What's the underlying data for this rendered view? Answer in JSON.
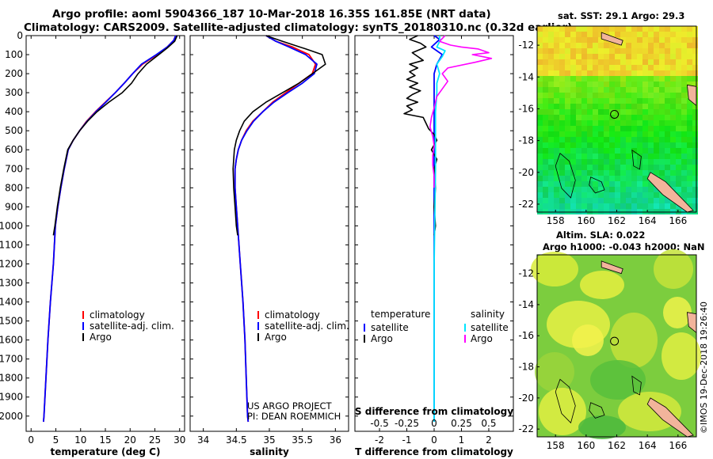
{
  "header": {
    "line1": "Argo profile: aoml 5904366_187 10-Mar-2018 16.35S 161.85E (NRT data)",
    "line2": "Climatology: CARS2009. Satellite-adjusted climatology: synTS_20180310.nc (0.32d earlier)"
  },
  "credit": "©IMOS 19-Dec-2018 19:26:40",
  "colors": {
    "clim": "#ff0000",
    "sat": "#0000ff",
    "argo": "#000000",
    "sdiff_sat": "#00e5ff",
    "sdiff_argo": "#ff00ff",
    "land": "#f2b49b"
  },
  "chart_data": [
    {
      "type": "line",
      "id": "temperature",
      "xlabel": "temperature (deg C)",
      "ylabel": "",
      "xlim": [
        -1,
        31
      ],
      "ylim": [
        2080,
        0
      ],
      "xticks": [
        0,
        5,
        10,
        15,
        20,
        25,
        30
      ],
      "yticks": [
        0,
        100,
        200,
        300,
        400,
        500,
        600,
        700,
        800,
        900,
        1000,
        1100,
        1200,
        1300,
        1400,
        1500,
        1600,
        1700,
        1800,
        1900,
        2000
      ],
      "legend": [
        "climatology",
        "satellite-adj. clim.",
        "Argo"
      ],
      "series": [
        {
          "name": "climatology",
          "color": "#ff0000",
          "points": [
            [
              29.2,
              0
            ],
            [
              28.8,
              25
            ],
            [
              27.5,
              60
            ],
            [
              25.5,
              100
            ],
            [
              22.5,
              150
            ],
            [
              20.5,
              200
            ],
            [
              18.8,
              250
            ],
            [
              17,
              300
            ],
            [
              15,
              350
            ],
            [
              13,
              400
            ],
            [
              11.2,
              450
            ],
            [
              9.8,
              500
            ],
            [
              8.5,
              550
            ],
            [
              7.5,
              600
            ],
            [
              6.7,
              700
            ],
            [
              6,
              800
            ],
            [
              5.4,
              900
            ],
            [
              4.9,
              1000
            ],
            [
              4.5,
              1200
            ],
            [
              3.9,
              1400
            ],
            [
              3.4,
              1600
            ],
            [
              3,
              1800
            ],
            [
              2.6,
              2000
            ],
            [
              2.5,
              2030
            ]
          ]
        },
        {
          "name": "satellite-adj. clim.",
          "color": "#0000ff",
          "points": [
            [
              29.2,
              0
            ],
            [
              28.8,
              25
            ],
            [
              27.5,
              60
            ],
            [
              25.3,
              100
            ],
            [
              22.3,
              150
            ],
            [
              20.5,
              200
            ],
            [
              18.8,
              250
            ],
            [
              17,
              300
            ],
            [
              15.1,
              350
            ],
            [
              13.1,
              400
            ],
            [
              11.3,
              450
            ],
            [
              9.8,
              500
            ],
            [
              8.5,
              550
            ],
            [
              7.5,
              600
            ],
            [
              6.7,
              700
            ],
            [
              6,
              800
            ],
            [
              5.4,
              900
            ],
            [
              4.9,
              1000
            ],
            [
              4.5,
              1200
            ],
            [
              3.9,
              1400
            ],
            [
              3.4,
              1600
            ],
            [
              3,
              1800
            ],
            [
              2.6,
              2000
            ],
            [
              2.5,
              2030
            ]
          ]
        },
        {
          "name": "Argo",
          "color": "#000000",
          "points": [
            [
              29.5,
              0
            ],
            [
              29,
              30
            ],
            [
              27.5,
              65
            ],
            [
              25.8,
              100
            ],
            [
              23.3,
              150
            ],
            [
              21.6,
              200
            ],
            [
              20.3,
              250
            ],
            [
              18.4,
              300
            ],
            [
              15.7,
              350
            ],
            [
              13.3,
              400
            ],
            [
              11.4,
              450
            ],
            [
              9.8,
              500
            ],
            [
              8.5,
              550
            ],
            [
              7.4,
              600
            ],
            [
              6.6,
              700
            ],
            [
              5.9,
              800
            ],
            [
              5.3,
              900
            ],
            [
              4.8,
              1000
            ],
            [
              4.5,
              1050
            ]
          ]
        }
      ]
    },
    {
      "type": "line",
      "id": "salinity",
      "xlabel": "salinity",
      "ylabel": "",
      "xlim": [
        33.8,
        36.2
      ],
      "ylim": [
        2080,
        0
      ],
      "xticks": [
        34,
        34.5,
        35,
        35.5,
        36
      ],
      "legend": [
        "climatology",
        "satellite-adj. clim.",
        "Argo"
      ],
      "annotation": [
        "US ARGO PROJECT",
        "PI: DEAN ROEMMICH"
      ],
      "series": [
        {
          "name": "climatology",
          "color": "#ff0000",
          "points": [
            [
              34.95,
              0
            ],
            [
              35.1,
              30
            ],
            [
              35.35,
              60
            ],
            [
              35.6,
              100
            ],
            [
              35.7,
              150
            ],
            [
              35.65,
              200
            ],
            [
              35.45,
              250
            ],
            [
              35.25,
              300
            ],
            [
              35.05,
              350
            ],
            [
              34.9,
              400
            ],
            [
              34.75,
              450
            ],
            [
              34.65,
              500
            ],
            [
              34.58,
              550
            ],
            [
              34.53,
              600
            ],
            [
              34.5,
              650
            ],
            [
              34.48,
              700
            ],
            [
              34.48,
              800
            ],
            [
              34.5,
              900
            ],
            [
              34.52,
              1000
            ],
            [
              34.56,
              1200
            ],
            [
              34.6,
              1400
            ],
            [
              34.63,
              1600
            ],
            [
              34.65,
              1800
            ],
            [
              34.67,
              2000
            ],
            [
              34.68,
              2030
            ]
          ]
        },
        {
          "name": "satellite-adj. clim.",
          "color": "#0000ff",
          "points": [
            [
              34.95,
              0
            ],
            [
              35.1,
              30
            ],
            [
              35.3,
              60
            ],
            [
              35.55,
              100
            ],
            [
              35.72,
              150
            ],
            [
              35.68,
              200
            ],
            [
              35.5,
              250
            ],
            [
              35.28,
              300
            ],
            [
              35.07,
              350
            ],
            [
              34.9,
              400
            ],
            [
              34.76,
              450
            ],
            [
              34.66,
              500
            ],
            [
              34.58,
              550
            ],
            [
              34.53,
              600
            ],
            [
              34.5,
              650
            ],
            [
              34.48,
              700
            ],
            [
              34.48,
              800
            ],
            [
              34.5,
              900
            ],
            [
              34.52,
              1000
            ],
            [
              34.56,
              1200
            ],
            [
              34.6,
              1400
            ],
            [
              34.63,
              1600
            ],
            [
              34.65,
              1800
            ],
            [
              34.67,
              2000
            ],
            [
              34.68,
              2030
            ]
          ]
        },
        {
          "name": "Argo",
          "color": "#000000",
          "points": [
            [
              34.95,
              0
            ],
            [
              35.2,
              30
            ],
            [
              35.55,
              70
            ],
            [
              35.8,
              100
            ],
            [
              35.85,
              150
            ],
            [
              35.65,
              200
            ],
            [
              35.45,
              250
            ],
            [
              35.2,
              300
            ],
            [
              34.95,
              350
            ],
            [
              34.75,
              400
            ],
            [
              34.62,
              450
            ],
            [
              34.55,
              500
            ],
            [
              34.5,
              550
            ],
            [
              34.47,
              600
            ],
            [
              34.46,
              650
            ],
            [
              34.45,
              700
            ],
            [
              34.46,
              800
            ],
            [
              34.48,
              900
            ],
            [
              34.5,
              1000
            ],
            [
              34.52,
              1050
            ]
          ]
        }
      ]
    },
    {
      "type": "line",
      "id": "difference",
      "xlabel": "T difference from climatology",
      "x2label": "S difference from climatology",
      "xlim": [
        -2.9,
        2.9
      ],
      "ylim": [
        2080,
        0
      ],
      "xticks": [
        -2,
        -1,
        0,
        1,
        2
      ],
      "x2ticks": [
        {
          "label": "-0.5",
          "x": -2
        },
        {
          "label": "-0.25",
          "x": -1
        },
        {
          "label": "0",
          "x": 0
        },
        {
          "label": "0.25",
          "x": 1
        },
        {
          "label": "0.5",
          "x": 2
        }
      ],
      "legend_left_title": "temperature",
      "legend_left": [
        "satellite",
        "Argo"
      ],
      "legend_right_title": "salinity",
      "legend_right": [
        "satellite",
        "Argo"
      ],
      "series": [
        {
          "name": "T satellite",
          "color": "#0000ff",
          "points": [
            [
              0,
              0
            ],
            [
              0.2,
              20
            ],
            [
              -0.1,
              60
            ],
            [
              0.3,
              100
            ],
            [
              0.1,
              150
            ],
            [
              0,
              200
            ],
            [
              0,
              300
            ],
            [
              0,
              500
            ],
            [
              0,
              2030
            ]
          ]
        },
        {
          "name": "T Argo",
          "color": "#000000",
          "points": [
            [
              -0.6,
              0
            ],
            [
              -0.9,
              20
            ],
            [
              -0.5,
              40
            ],
            [
              -0.3,
              60
            ],
            [
              -0.8,
              90
            ],
            [
              -0.6,
              110
            ],
            [
              -0.4,
              130
            ],
            [
              -0.9,
              150
            ],
            [
              -0.6,
              170
            ],
            [
              -0.9,
              190
            ],
            [
              -0.7,
              210
            ],
            [
              -1,
              230
            ],
            [
              -0.6,
              250
            ],
            [
              -0.9,
              270
            ],
            [
              -0.5,
              290
            ],
            [
              -0.8,
              310
            ],
            [
              -1,
              330
            ],
            [
              -0.6,
              350
            ],
            [
              -1,
              370
            ],
            [
              -0.8,
              390
            ],
            [
              -1.1,
              410
            ],
            [
              -0.4,
              430
            ],
            [
              -0.3,
              460
            ],
            [
              -0.2,
              490
            ],
            [
              0,
              520
            ],
            [
              0.1,
              550
            ],
            [
              -0.1,
              600
            ],
            [
              0.1,
              650
            ],
            [
              0,
              700
            ],
            [
              0.05,
              800
            ],
            [
              0,
              900
            ],
            [
              0.05,
              1000
            ],
            [
              0,
              1050
            ]
          ]
        },
        {
          "name": "S satellite",
          "color": "#00e5ff",
          "points": [
            [
              0.2,
              0
            ],
            [
              0.2,
              30
            ],
            [
              0.1,
              60
            ],
            [
              0.4,
              80
            ],
            [
              0.3,
              110
            ],
            [
              0.1,
              150
            ],
            [
              0.2,
              200
            ],
            [
              0.1,
              250
            ],
            [
              0.1,
              300
            ],
            [
              0.05,
              400
            ],
            [
              0.05,
              500
            ],
            [
              0.05,
              700
            ],
            [
              0.02,
              1000
            ],
            [
              0,
              1200
            ],
            [
              0,
              2030
            ]
          ]
        },
        {
          "name": "S Argo",
          "color": "#ff00ff",
          "points": [
            [
              0.4,
              0
            ],
            [
              0.2,
              30
            ],
            [
              0.6,
              50
            ],
            [
              1.0,
              60
            ],
            [
              1.6,
              70
            ],
            [
              2.0,
              90
            ],
            [
              1.4,
              100
            ],
            [
              2.1,
              120
            ],
            [
              1.5,
              140
            ],
            [
              0.5,
              170
            ],
            [
              0.3,
              200
            ],
            [
              0.5,
              240
            ],
            [
              0.3,
              280
            ],
            [
              0.1,
              320
            ],
            [
              0,
              380
            ],
            [
              -0.1,
              430
            ],
            [
              -0.15,
              480
            ],
            [
              -0.05,
              530
            ],
            [
              0,
              580
            ],
            [
              -0.05,
              630
            ],
            [
              -0.05,
              680
            ],
            [
              0,
              740
            ],
            [
              0,
              800
            ]
          ]
        }
      ]
    },
    {
      "type": "heatmap",
      "id": "sst-map",
      "title": "sat. SST: 29.1 Argo: 29.3",
      "xticks": [
        158,
        160,
        162,
        164,
        166
      ],
      "yticks": [
        -12,
        -14,
        -16,
        -18,
        -20,
        -22
      ],
      "xlim": [
        156.8,
        167.2
      ],
      "ylim": [
        -22.5,
        -10.8
      ],
      "marker": [
        161.85,
        -16.35
      ]
    },
    {
      "type": "heatmap",
      "id": "sla-map",
      "title": "Altim. SLA: 0.022",
      "subtitle": "Argo h1000: -0.043 h2000: NaN",
      "xticks": [
        158,
        160,
        162,
        164,
        166
      ],
      "yticks": [
        -12,
        -14,
        -16,
        -18,
        -20,
        -22
      ],
      "xlim": [
        156.8,
        167.2
      ],
      "ylim": [
        -22.5,
        -10.8
      ],
      "marker": [
        161.85,
        -16.35
      ]
    }
  ]
}
